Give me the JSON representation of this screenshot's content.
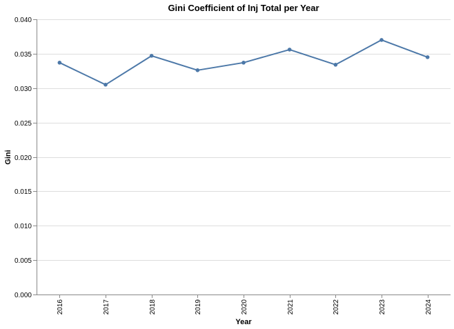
{
  "chart_data": {
    "type": "line",
    "title": "Gini Coefficient of Inj Total per Year",
    "xlabel": "Year",
    "ylabel": "Gini",
    "x": [
      "2016",
      "2017",
      "2018",
      "2019",
      "2020",
      "2021",
      "2022",
      "2023",
      "2024"
    ],
    "series": [
      {
        "values": [
          0.0337,
          0.0305,
          0.0347,
          0.0326,
          0.0337,
          0.0356,
          0.0334,
          0.037,
          0.0345
        ]
      }
    ],
    "ylim": [
      0,
      0.04
    ],
    "yticks": [
      "0.000",
      "0.005",
      "0.010",
      "0.015",
      "0.020",
      "0.025",
      "0.030",
      "0.035",
      "0.040"
    ],
    "grid": true,
    "legend": "none",
    "colors": {
      "line": "#4c78a8",
      "grid": "#dddddd",
      "axis": "#888888"
    }
  }
}
